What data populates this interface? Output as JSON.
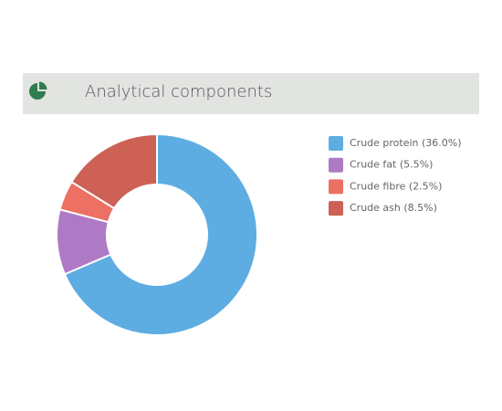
{
  "chart_data": {
    "type": "donut",
    "title": "Analytical components",
    "categories": [
      "Crude protein (36.0%)",
      "Crude fat (5.5%)",
      "Crude fibre (2.5%)",
      "Crude ash (8.5%)"
    ],
    "values": [
      36.0,
      5.5,
      2.5,
      8.5
    ],
    "colors": [
      "#5dade2",
      "#af7ac5",
      "#ec7063",
      "#cd6155"
    ]
  }
}
